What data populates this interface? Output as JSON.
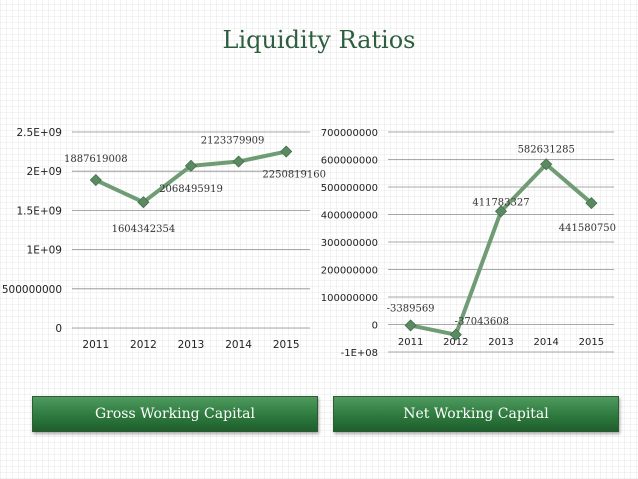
{
  "title": "Liquidity Ratios",
  "buttons": {
    "gross_label": "Gross Working Capital",
    "net_label": "Net Working Capital"
  },
  "colors": {
    "line": "#6f9c74",
    "marker": "#5a8a62",
    "title": "#2f5e3f",
    "button": "#2e7a3e"
  },
  "chart_data": [
    {
      "type": "line",
      "categories": [
        "2011",
        "2012",
        "2013",
        "2014",
        "2015"
      ],
      "series": [
        {
          "values": [
            1887619008,
            1604342354,
            2068495919,
            2123379909,
            2250819160
          ]
        }
      ],
      "data_labels": [
        "1887619008",
        "1604342354",
        "2068495919",
        "2123379909",
        "2250819160"
      ],
      "ylim": [
        0,
        2500000000
      ],
      "yticks": [
        0,
        500000000,
        1000000000,
        1500000000,
        2000000000,
        2500000000
      ],
      "ytick_labels": [
        "0",
        "500000000",
        "1E+09",
        "1.5E+09",
        "2E+09",
        "2.5E+09"
      ],
      "grid": true
    },
    {
      "type": "line",
      "categories": [
        "2011",
        "2012",
        "2013",
        "2014",
        "2015"
      ],
      "series": [
        {
          "values": [
            -3389569,
            -37043608,
            411783327,
            582631285,
            441580750
          ]
        }
      ],
      "data_labels": [
        "-3389569",
        "-37043608",
        "411783327",
        "582631285",
        "441580750"
      ],
      "ylim": [
        -100000000,
        700000000
      ],
      "yticks": [
        -100000000,
        0,
        100000000,
        200000000,
        300000000,
        400000000,
        500000000,
        600000000,
        700000000
      ],
      "ytick_labels": [
        "-1E+08",
        "0",
        "100000000",
        "200000000",
        "300000000",
        "400000000",
        "500000000",
        "600000000",
        "700000000"
      ],
      "grid": true
    }
  ]
}
